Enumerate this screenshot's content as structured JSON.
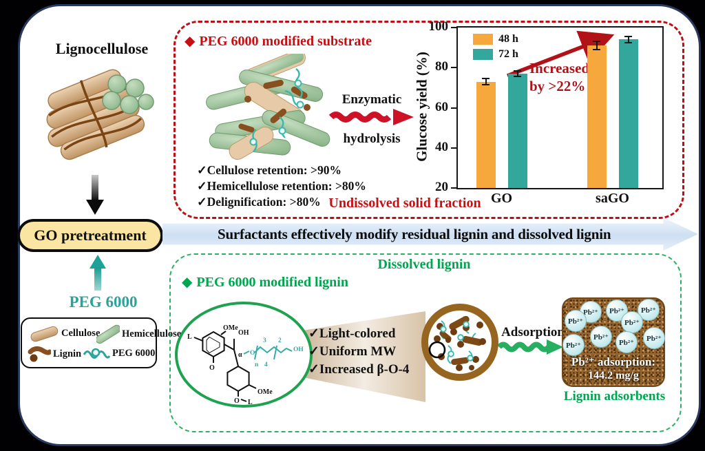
{
  "left_column": {
    "lignocellulose_label": "Lignocellulose",
    "go_pretreatment_label": "GO pretreatment",
    "peg6000_label": "PEG 6000"
  },
  "material_legend": {
    "items": [
      {
        "name": "cellulose",
        "label": "Cellulose"
      },
      {
        "name": "hemicellulose",
        "label": "Hemicellulose"
      },
      {
        "name": "lignin",
        "label": "Lignin"
      },
      {
        "name": "peg6000",
        "label": "PEG 6000"
      }
    ]
  },
  "banner": {
    "text": "Surfactants effectively modify residual lignin and dissolved lignin"
  },
  "substrate_section": {
    "bullet": "◆",
    "title": "PEG 6000 modified substrate",
    "checklist": [
      "✓Cellulose retention: >90%",
      "✓Hemicellulose retention: >80%",
      "✓Delignification: >80%"
    ],
    "process_label_line1": "Enzymatic",
    "process_label_line2": "hydrolysis",
    "caption": "Undissolved solid fraction"
  },
  "chart_data": {
    "type": "bar",
    "categories": [
      "GO",
      "saGO"
    ],
    "series": [
      {
        "name": "48 h",
        "color": "#f6a83c",
        "values": [
          73,
          91
        ],
        "errors": [
          1.5,
          2.0
        ]
      },
      {
        "name": "72 h",
        "color": "#33a79b",
        "values": [
          77,
          94
        ],
        "errors": [
          1.5,
          1.5
        ]
      }
    ],
    "ylabel": "Glucose yield (%)",
    "ylim": [
      20,
      100
    ],
    "yticks": [
      20,
      40,
      60,
      80,
      100
    ],
    "legend_position": "top-left",
    "grid": false,
    "annotation": {
      "line1": "Increased",
      "line2": "by >22%"
    }
  },
  "lignin_section": {
    "title": "Dissolved lignin",
    "bullet": "◆",
    "subtitle": "PEG 6000 modified lignin",
    "checklist": [
      "✓Light-colored",
      "✓Uniform MW",
      "✓Increased β-O-4"
    ],
    "structure_labels": {
      "l_top": "L",
      "ome_top": "OMe",
      "oh_top": "OH",
      "alpha": "α",
      "o_chain": "O",
      "n3": "3",
      "n2": "2",
      "n_sub": "n",
      "n4": "4",
      "oh_end": "OH",
      "ome_bottom": "OMe",
      "o_bottom": "O",
      "l_bottom": "L"
    },
    "adsorption_label": "Adsorption",
    "adsorbent": {
      "ion_label": "Pb²⁺",
      "ion_count": 9,
      "stat_line1": "Pb²⁺ adsorption:",
      "stat_line2": "144.2 mg/g",
      "caption": "Lignin adsorbents"
    }
  },
  "colors": {
    "accent_red": "#c31014",
    "accent_green": "#00a64f",
    "accent_teal": "#2ca39a",
    "bar_orange": "#f6a83c",
    "bar_teal": "#33a79b",
    "banner_blue": "#cddff2",
    "pill_yellow": "#fae6a2"
  }
}
